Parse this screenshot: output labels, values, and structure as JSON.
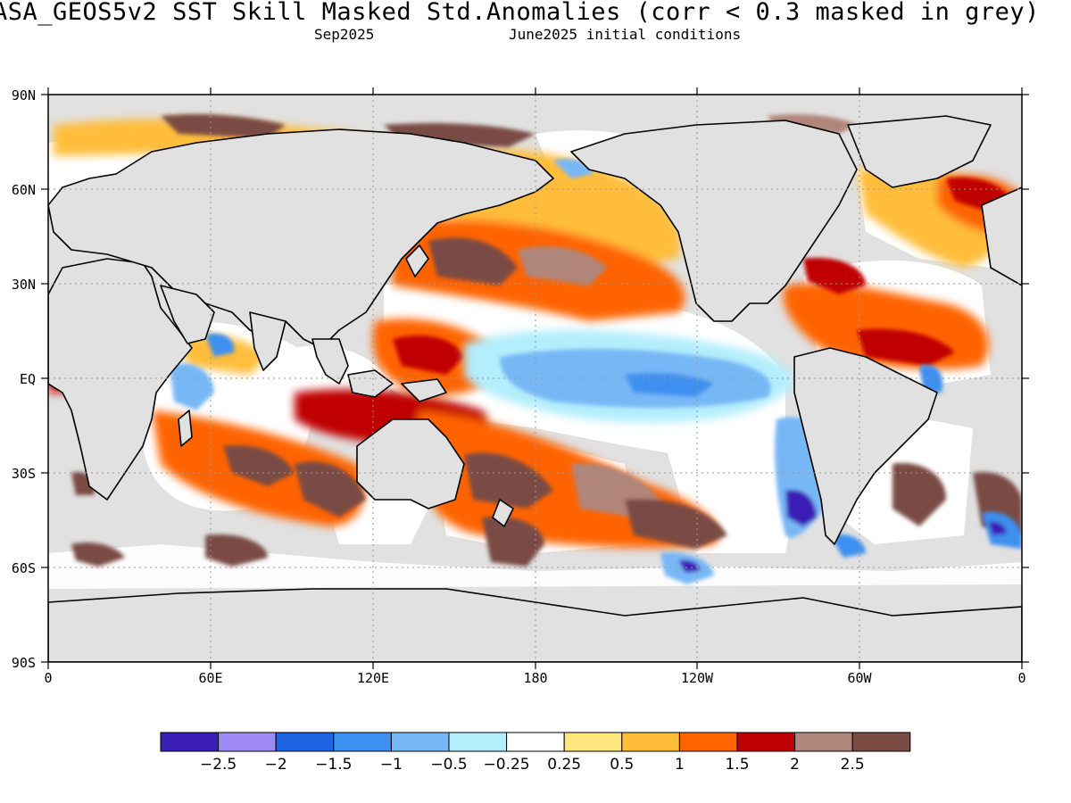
{
  "header": {
    "title": "ASA_GEOS5v2  SST Skill Masked Std.Anomalies (corr < 0.3 masked in grey)",
    "valid_month": "Sep2025",
    "init_conditions": "June2025 initial conditions"
  },
  "map": {
    "lat_ticks": [
      "90N",
      "60N",
      "30N",
      "EQ",
      "30S",
      "60S",
      "90S"
    ],
    "lon_ticks": [
      "0",
      "60E",
      "120E",
      "180",
      "120W",
      "60W",
      "0"
    ],
    "mask_color": "#e1e1e1",
    "ocean_neutral_color": "#ffffff",
    "grid": true
  },
  "colorbar": {
    "colors": [
      "#3a1fb6",
      "#9d8bf3",
      "#1f63e3",
      "#3c90f0",
      "#78b7f6",
      "#b3eefc",
      "#ffffff",
      "#ffe77f",
      "#ffbd3a",
      "#ff6400",
      "#c00000",
      "#b0857a",
      "#7a4c44"
    ],
    "labels": [
      "−2.5",
      "−2",
      "−1.5",
      "−1",
      "−0.5",
      "−0.25",
      "0.25",
      "0.5",
      "1",
      "1.5",
      "2",
      "2.5"
    ]
  }
}
